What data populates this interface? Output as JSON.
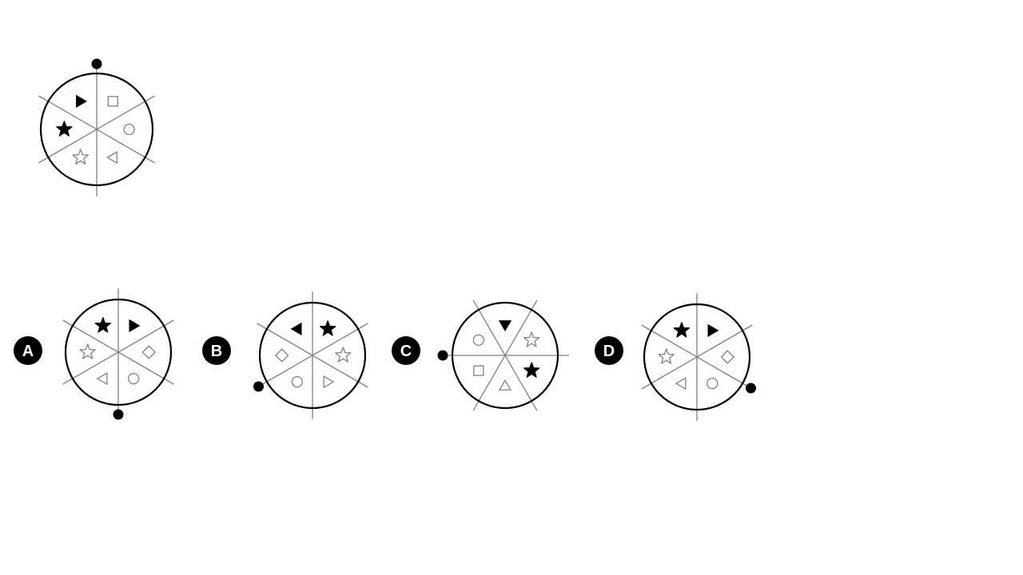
{
  "colors": {
    "ink": "#000000",
    "line": "#808080",
    "paper": "#ffffff"
  },
  "question": {
    "figure": {
      "dot": "top",
      "sectors": [
        {
          "shape": "square",
          "style": "outline"
        },
        {
          "shape": "circle",
          "style": "outline"
        },
        {
          "shape": "triangle-left",
          "style": "outline"
        },
        {
          "shape": "star",
          "style": "outline"
        },
        {
          "shape": "star",
          "style": "filled"
        },
        {
          "shape": "triangle-right",
          "style": "filled"
        }
      ]
    }
  },
  "options": [
    {
      "label": "A",
      "dot": "bottom",
      "sectors": [
        {
          "shape": "triangle-right",
          "style": "filled"
        },
        {
          "shape": "diamond",
          "style": "outline"
        },
        {
          "shape": "circle",
          "style": "outline"
        },
        {
          "shape": "triangle-left",
          "style": "outline"
        },
        {
          "shape": "star",
          "style": "outline"
        },
        {
          "shape": "star",
          "style": "filled"
        }
      ]
    },
    {
      "label": "B",
      "dot": "bottom-left",
      "sectors": [
        {
          "shape": "star",
          "style": "filled"
        },
        {
          "shape": "star",
          "style": "outline"
        },
        {
          "shape": "triangle-right",
          "style": "outline"
        },
        {
          "shape": "circle",
          "style": "outline"
        },
        {
          "shape": "diamond",
          "style": "outline"
        },
        {
          "shape": "triangle-left",
          "style": "filled"
        }
      ]
    },
    {
      "label": "C",
      "dot": "left",
      "sectors": [
        {
          "shape": "triangle-down",
          "style": "filled"
        },
        {
          "shape": "star",
          "style": "outline"
        },
        {
          "shape": "star",
          "style": "filled"
        },
        {
          "shape": "triangle-up",
          "style": "outline"
        },
        {
          "shape": "square",
          "style": "outline"
        },
        {
          "shape": "circle",
          "style": "outline"
        }
      ]
    },
    {
      "label": "D",
      "dot": "bottom-right",
      "sectors": [
        {
          "shape": "triangle-right",
          "style": "filled"
        },
        {
          "shape": "diamond",
          "style": "outline"
        },
        {
          "shape": "circle",
          "style": "outline"
        },
        {
          "shape": "triangle-left",
          "style": "outline"
        },
        {
          "shape": "star",
          "style": "outline"
        },
        {
          "shape": "star",
          "style": "filled"
        }
      ]
    }
  ]
}
